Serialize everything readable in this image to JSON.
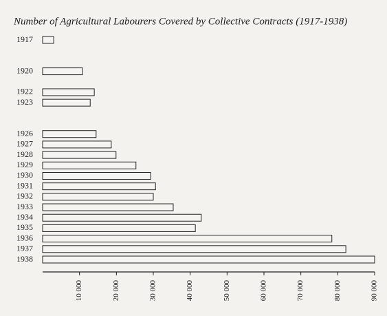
{
  "chart_data": {
    "type": "bar",
    "orientation": "horizontal",
    "title": "Number of Agricultural Labourers Covered by Collective Contracts (1917-1938)",
    "x": [
      1917,
      1920,
      1922,
      1923,
      1926,
      1927,
      1928,
      1929,
      1930,
      1931,
      1932,
      1933,
      1934,
      1935,
      1936,
      1937,
      1938
    ],
    "values": [
      3000,
      10800,
      14000,
      12900,
      14500,
      18600,
      19900,
      25300,
      29300,
      30600,
      30000,
      35400,
      43000,
      41400,
      78400,
      82200,
      90000
    ],
    "color": "#f6f4f1",
    "ylim": [
      1917,
      1938
    ],
    "xlim": [
      0,
      90000
    ],
    "xticks": [
      {
        "value": 10000,
        "label": "10 000"
      },
      {
        "value": 20000,
        "label": "20 000"
      },
      {
        "value": 30000,
        "label": "30 000"
      },
      {
        "value": 40000,
        "label": "40 000"
      },
      {
        "value": 50000,
        "label": "50 000"
      },
      {
        "value": 60000,
        "label": "60 000"
      },
      {
        "value": 70000,
        "label": "70 000"
      },
      {
        "value": 80000,
        "label": "80 000"
      },
      {
        "value": 90000,
        "label": "90 000"
      }
    ],
    "grid": false
  }
}
